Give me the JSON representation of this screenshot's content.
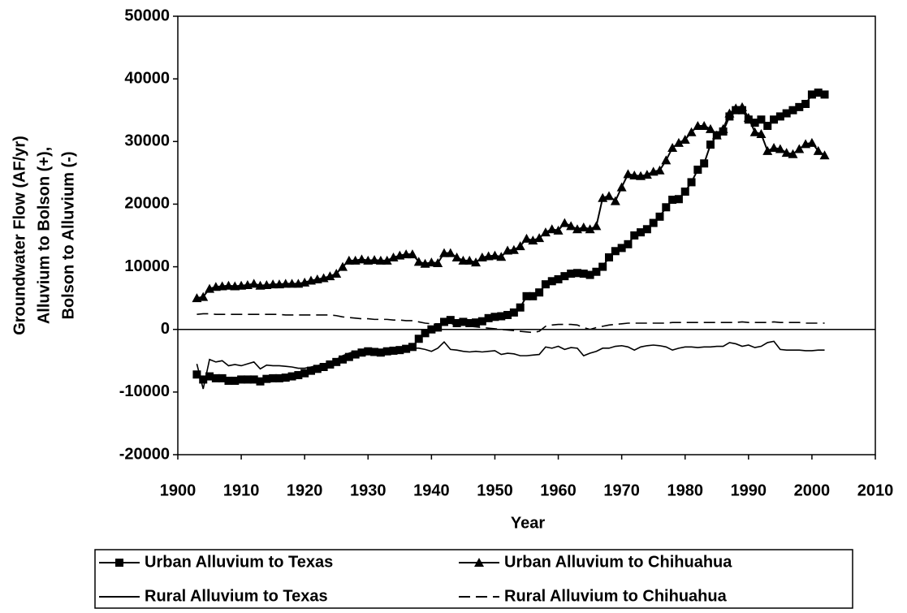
{
  "chart_data": {
    "type": "line",
    "xlabel": "Year",
    "ylabel": [
      "Groundwater Flow (AF/yr)",
      "Alluvium to Bolson (+),",
      "Bolson to Alluvium (-)"
    ],
    "xlim": [
      1900,
      2010
    ],
    "xticks": [
      1900,
      1910,
      1920,
      1930,
      1940,
      1950,
      1960,
      1970,
      1980,
      1990,
      2000,
      2010
    ],
    "ylim": [
      -20000,
      50000
    ],
    "yticks": [
      -20000,
      -10000,
      0,
      10000,
      20000,
      30000,
      40000,
      50000
    ],
    "x": [
      1903,
      1904,
      1905,
      1906,
      1907,
      1908,
      1909,
      1910,
      1911,
      1912,
      1913,
      1914,
      1915,
      1916,
      1917,
      1918,
      1919,
      1920,
      1921,
      1922,
      1923,
      1924,
      1925,
      1926,
      1927,
      1928,
      1929,
      1930,
      1931,
      1932,
      1933,
      1934,
      1935,
      1936,
      1937,
      1938,
      1939,
      1940,
      1941,
      1942,
      1943,
      1944,
      1945,
      1946,
      1947,
      1948,
      1949,
      1950,
      1951,
      1952,
      1953,
      1954,
      1955,
      1956,
      1957,
      1958,
      1959,
      1960,
      1961,
      1962,
      1963,
      1964,
      1965,
      1966,
      1967,
      1968,
      1969,
      1970,
      1971,
      1972,
      1973,
      1974,
      1975,
      1976,
      1977,
      1978,
      1979,
      1980,
      1981,
      1982,
      1983,
      1984,
      1985,
      1986,
      1987,
      1988,
      1989,
      1990,
      1991,
      1992,
      1993,
      1994,
      1995,
      1996,
      1997,
      1998,
      1999,
      2000,
      2001,
      2002
    ],
    "series": [
      {
        "name": "Urban Alluvium to Texas",
        "color": "#000000",
        "marker": "square",
        "style": "solid",
        "values": [
          -7200,
          -8000,
          -7500,
          -7800,
          -7800,
          -8200,
          -8200,
          -8000,
          -8000,
          -8000,
          -8300,
          -7900,
          -7800,
          -7800,
          -7700,
          -7500,
          -7300,
          -7000,
          -6600,
          -6300,
          -6000,
          -5600,
          -5200,
          -4800,
          -4400,
          -4000,
          -3700,
          -3500,
          -3600,
          -3700,
          -3500,
          -3400,
          -3300,
          -3100,
          -2800,
          -1500,
          -600,
          0,
          300,
          1200,
          1500,
          1000,
          1200,
          1000,
          1100,
          1300,
          1800,
          2000,
          2100,
          2300,
          2700,
          3500,
          5300,
          5300,
          5900,
          7200,
          7700,
          8000,
          8500,
          8900,
          9000,
          8900,
          8700,
          9200,
          10000,
          11500,
          12500,
          13000,
          13600,
          15000,
          15500,
          16000,
          17000,
          18000,
          19500,
          20700,
          20800,
          22000,
          23500,
          25500,
          26500,
          29500,
          31000,
          31600,
          34000,
          35000,
          35000,
          33500,
          33000,
          33500,
          32500,
          33500,
          34000,
          34500,
          35000,
          35500,
          36000,
          37500,
          37800,
          37500
        ]
      },
      {
        "name": "Urban Alluvium to Chihuahua",
        "color": "#000000",
        "marker": "triangle",
        "style": "solid",
        "values": [
          5000,
          5200,
          6500,
          6800,
          6900,
          7000,
          6900,
          7000,
          7100,
          7300,
          7000,
          7100,
          7200,
          7200,
          7300,
          7300,
          7300,
          7500,
          7800,
          8000,
          8200,
          8500,
          8900,
          10000,
          11000,
          11000,
          11200,
          11000,
          11100,
          11000,
          11000,
          11500,
          11800,
          12000,
          12000,
          10800,
          10500,
          10700,
          10600,
          12200,
          12200,
          11500,
          11000,
          11000,
          10700,
          11500,
          11700,
          11800,
          11600,
          12600,
          12700,
          13300,
          14500,
          14200,
          14600,
          15500,
          16000,
          15800,
          17000,
          16500,
          16000,
          16300,
          16000,
          16500,
          21000,
          21300,
          20500,
          22700,
          24800,
          24600,
          24500,
          24700,
          25200,
          25400,
          27000,
          29000,
          29800,
          30300,
          31500,
          32500,
          32500,
          32000,
          31000,
          32000,
          34500,
          35300,
          35500,
          33800,
          31500,
          31200,
          28500,
          29000,
          28800,
          28200,
          28000,
          28800,
          29600,
          29800,
          28500,
          27800
        ]
      },
      {
        "name": "Rural Alluvium to Texas",
        "color": "#000000",
        "marker": "none",
        "style": "solid",
        "values": [
          -5500,
          -9500,
          -4800,
          -5200,
          -5000,
          -5800,
          -5600,
          -5800,
          -5500,
          -5200,
          -6300,
          -5700,
          -5800,
          -5800,
          -5900,
          -6000,
          -6200,
          -6200,
          -6000,
          -5800,
          -5500,
          -5300,
          -4800,
          -4200,
          -3800,
          -3500,
          -3500,
          -3400,
          -3500,
          -3300,
          -3200,
          -3300,
          -3200,
          -3100,
          -3000,
          -3000,
          -3200,
          -3500,
          -3000,
          -2000,
          -3200,
          -3300,
          -3500,
          -3600,
          -3500,
          -3600,
          -3500,
          -3400,
          -4000,
          -3800,
          -3900,
          -4200,
          -4200,
          -4100,
          -4000,
          -2800,
          -3000,
          -2700,
          -3200,
          -2900,
          -3000,
          -4200,
          -3800,
          -3500,
          -3000,
          -3000,
          -2700,
          -2600,
          -2800,
          -3300,
          -2800,
          -2600,
          -2500,
          -2600,
          -2800,
          -3300,
          -3000,
          -2800,
          -2800,
          -2900,
          -2800,
          -2800,
          -2700,
          -2700,
          -2100,
          -2300,
          -2700,
          -2500,
          -2900,
          -2700,
          -2100,
          -1900,
          -3200,
          -3300,
          -3300,
          -3300,
          -3400,
          -3400,
          -3300,
          -3300
        ]
      },
      {
        "name": "Rural Alluvium to Chihuahua",
        "color": "#000000",
        "marker": "none",
        "style": "dashed",
        "values": [
          2400,
          2500,
          2500,
          2400,
          2400,
          2400,
          2400,
          2400,
          2400,
          2400,
          2400,
          2400,
          2400,
          2400,
          2300,
          2300,
          2300,
          2300,
          2300,
          2300,
          2300,
          2300,
          2200,
          2000,
          1900,
          1800,
          1700,
          1700,
          1600,
          1600,
          1600,
          1500,
          1500,
          1400,
          1400,
          1200,
          1000,
          900,
          900,
          900,
          900,
          800,
          700,
          500,
          400,
          300,
          200,
          100,
          0,
          -100,
          -200,
          -300,
          -400,
          -500,
          -300,
          500,
          700,
          800,
          800,
          800,
          700,
          300,
          0,
          300,
          500,
          700,
          800,
          900,
          1000,
          1000,
          1000,
          1000,
          1000,
          1000,
          1000,
          1100,
          1100,
          1100,
          1100,
          1100,
          1100,
          1100,
          1100,
          1100,
          1100,
          1100,
          1200,
          1100,
          1100,
          1100,
          1100,
          1200,
          1100,
          1100,
          1100,
          1100,
          1000,
          1000,
          1000,
          1000
        ]
      }
    ]
  }
}
